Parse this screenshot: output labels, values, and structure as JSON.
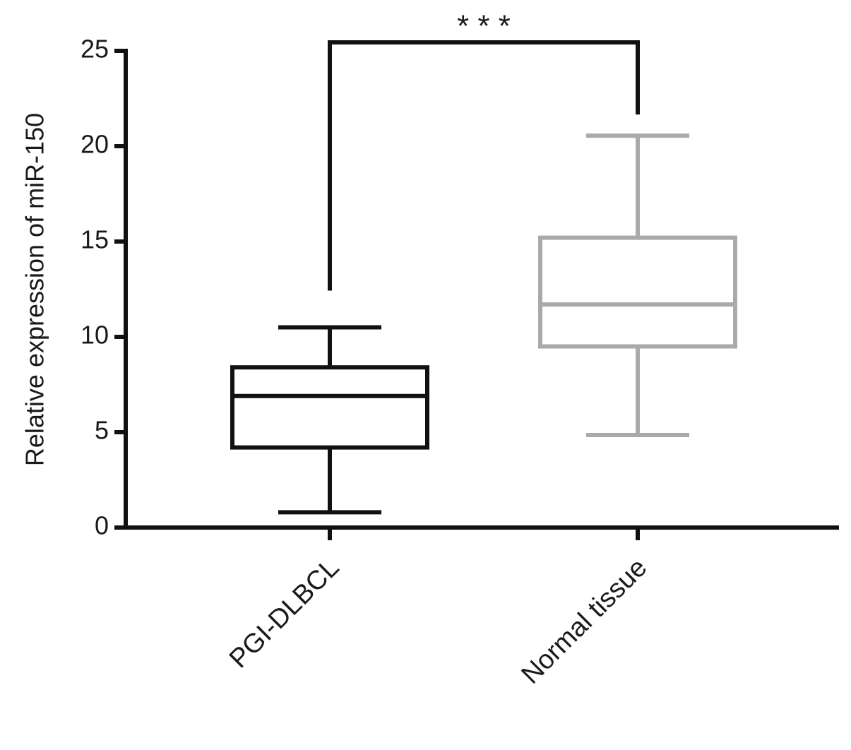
{
  "chart_data": {
    "type": "box",
    "y_label": "Relative expression of  miR-150",
    "categories": [
      "PGI-DLBCL",
      "Normal tissue"
    ],
    "boxes": [
      {
        "min": 0.8,
        "q1": 4.2,
        "median": 6.9,
        "q3": 8.4,
        "max": 10.5,
        "color": "#111111"
      },
      {
        "min": 4.85,
        "q1": 9.5,
        "median": 11.7,
        "q3": 15.2,
        "max": 20.55,
        "color": "#aaaaaa"
      }
    ],
    "significance": "* * *",
    "ylim": [
      0,
      25
    ],
    "yticks": [
      0,
      5,
      10,
      15,
      20,
      25
    ]
  }
}
